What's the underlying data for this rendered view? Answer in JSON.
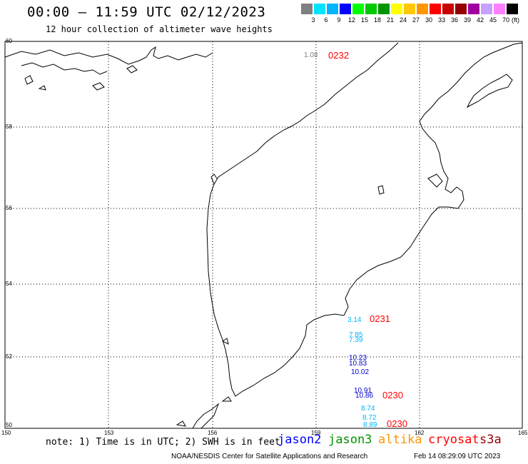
{
  "header": {
    "title": "00:00 – 11:59 UTC 02/12/2023",
    "subtitle": "12 hour collection of altimeter wave heights"
  },
  "scale": {
    "colors": [
      "#808080",
      "#00e5ff",
      "#00b4ff",
      "#0000ff",
      "#00ff00",
      "#00c800",
      "#009600",
      "#ffff00",
      "#ffc800",
      "#ff9600",
      "#ff0000",
      "#c80000",
      "#960000",
      "#a000a0",
      "#c8a0ff",
      "#ff80ff",
      "#000000"
    ],
    "labels": [
      "3",
      "6",
      "9",
      "12",
      "15",
      "18",
      "21",
      "24",
      "27",
      "30",
      "33",
      "36",
      "39",
      "42",
      "45",
      "70"
    ],
    "unit": "(ft)"
  },
  "map": {
    "lat_ticks": [
      "60",
      "58",
      "56",
      "54",
      "52",
      "50"
    ],
    "lon_ticks": [
      "150",
      "153",
      "156",
      "159",
      "162",
      "165"
    ]
  },
  "observations": [
    {
      "value": "1.08",
      "color": "#808080"
    },
    {
      "value": "3.14",
      "color": "#00b4ff"
    },
    {
      "value": "7.85",
      "color": "#00b4ff"
    },
    {
      "value": "7.39",
      "color": "#00b4ff"
    },
    {
      "value": "10.23",
      "color": "#0000c8"
    },
    {
      "value": "10.83",
      "color": "#0000c8"
    },
    {
      "value": "10.02",
      "color": "#0000c8"
    },
    {
      "value": "10.91",
      "color": "#0000c8"
    },
    {
      "value": "10.86",
      "color": "#0000c8"
    },
    {
      "value": "8.74",
      "color": "#00b4ff"
    },
    {
      "value": "8.72",
      "color": "#00b4ff"
    },
    {
      "value": "8.89",
      "color": "#00b4ff"
    }
  ],
  "pass_times": [
    "0232",
    "0231",
    "0230",
    "0230"
  ],
  "note": "note: 1) Time is in UTC; 2) SWH is in feet",
  "satellites": [
    {
      "name": "jason2",
      "color": "#0000ff"
    },
    {
      "name": "jason3",
      "color": "#009600"
    },
    {
      "name": "altika",
      "color": "#ff9600"
    },
    {
      "name": "cryosat",
      "color": "#ff0000"
    },
    {
      "name": "s3a",
      "color": "#960000"
    }
  ],
  "footer": {
    "left": "NOAA/NESDIS Center for Satellite Applications and Research",
    "right": "Feb 14 08:29:09 UTC 2023"
  }
}
